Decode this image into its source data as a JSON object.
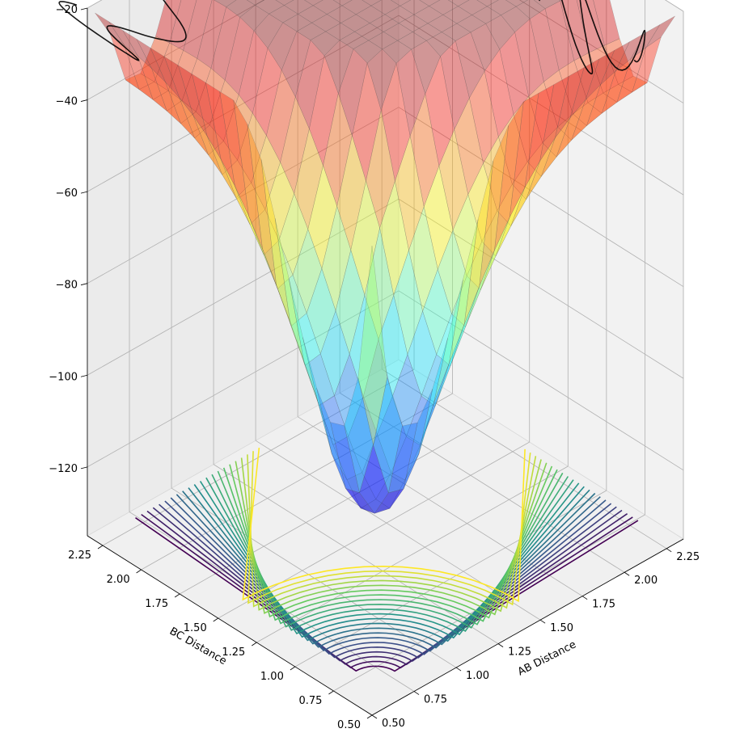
{
  "chart_data": {
    "type": "surface3d",
    "title": "",
    "xlabel": "AB Distance",
    "ylabel": "BC Distance",
    "zlabel": "",
    "x_ticks": [
      "0.50",
      "0.75",
      "1.00",
      "1.25",
      "1.50",
      "1.75",
      "2.00",
      "2.25"
    ],
    "y_ticks": [
      "0.50",
      "0.75",
      "1.00",
      "1.25",
      "1.50",
      "1.75",
      "2.00",
      "2.25"
    ],
    "z_ticks": [
      "−20",
      "−40",
      "−60",
      "−80",
      "−100",
      "−120"
    ],
    "x_tick_values": [
      0.5,
      0.75,
      1.0,
      1.25,
      1.5,
      1.75,
      2.0,
      2.25
    ],
    "y_tick_values": [
      0.5,
      0.75,
      1.0,
      1.25,
      1.5,
      1.75,
      2.0,
      2.25
    ],
    "z_tick_values": [
      -20,
      -40,
      -60,
      -80,
      -100,
      -120
    ],
    "xlim": [
      0.5,
      2.35
    ],
    "ylim": [
      0.5,
      2.35
    ],
    "zlim": [
      -135,
      -20
    ],
    "grid": true,
    "surface_colormap": "jet",
    "contour_colormap": "viridis",
    "trajectory_color": "#000000",
    "surface_zmin": -104,
    "surface_zmax": -20
  }
}
